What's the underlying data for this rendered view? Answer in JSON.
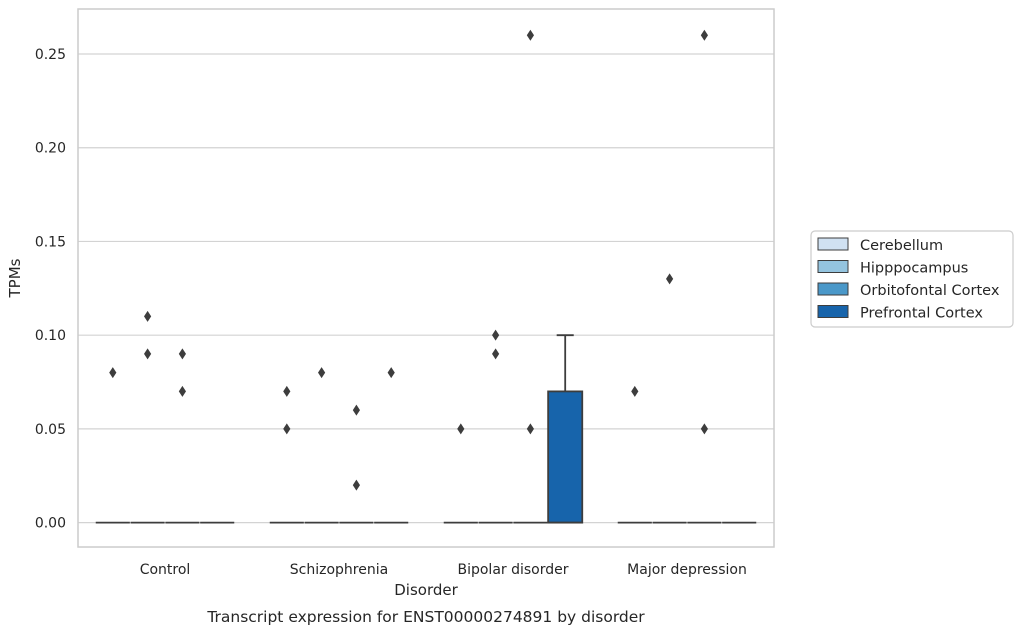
{
  "chart_data": {
    "type": "box",
    "caption": "Transcript expression for ENST00000274891 by disorder",
    "xlabel": "Disorder",
    "ylabel": "TPMs",
    "ylim": [
      -0.013,
      0.274
    ],
    "yticks": [
      0.0,
      0.05,
      0.1,
      0.15,
      0.2,
      0.25
    ],
    "ytick_labels": [
      "0.00",
      "0.05",
      "0.10",
      "0.15",
      "0.20",
      "0.25"
    ],
    "grid": "horizontal",
    "legend_position": "right",
    "categories": [
      "Control",
      "Schizophrenia",
      "Bipolar disorder",
      "Major depression"
    ],
    "series": [
      {
        "name": "Cerebellum",
        "color": "#d0e1f2",
        "boxes": [
          {
            "min": 0,
            "q1": 0,
            "median": 0,
            "q3": 0,
            "max": 0,
            "outliers": [
              0.08
            ]
          },
          {
            "min": 0,
            "q1": 0,
            "median": 0,
            "q3": 0,
            "max": 0,
            "outliers": [
              0.07,
              0.05
            ]
          },
          {
            "min": 0,
            "q1": 0,
            "median": 0,
            "q3": 0,
            "max": 0,
            "outliers": [
              0.05
            ]
          },
          {
            "min": 0,
            "q1": 0,
            "median": 0,
            "q3": 0,
            "max": 0,
            "outliers": [
              0.07
            ]
          }
        ]
      },
      {
        "name": "Hipppocampus",
        "color": "#94c4df",
        "boxes": [
          {
            "min": 0,
            "q1": 0,
            "median": 0,
            "q3": 0,
            "max": 0,
            "outliers": [
              0.11,
              0.09
            ]
          },
          {
            "min": 0,
            "q1": 0,
            "median": 0,
            "q3": 0,
            "max": 0,
            "outliers": [
              0.08
            ]
          },
          {
            "min": 0,
            "q1": 0,
            "median": 0,
            "q3": 0,
            "max": 0,
            "outliers": [
              0.1,
              0.09
            ]
          },
          {
            "min": 0,
            "q1": 0,
            "median": 0,
            "q3": 0,
            "max": 0,
            "outliers": [
              0.13
            ]
          }
        ]
      },
      {
        "name": "Orbitofontal Cortex",
        "color": "#4a98c9",
        "boxes": [
          {
            "min": 0,
            "q1": 0,
            "median": 0,
            "q3": 0,
            "max": 0,
            "outliers": [
              0.09,
              0.07
            ]
          },
          {
            "min": 0,
            "q1": 0,
            "median": 0,
            "q3": 0,
            "max": 0,
            "outliers": [
              0.06,
              0.02
            ]
          },
          {
            "min": 0,
            "q1": 0,
            "median": 0,
            "q3": 0,
            "max": 0,
            "outliers": [
              0.26,
              0.05
            ]
          },
          {
            "min": 0,
            "q1": 0,
            "median": 0,
            "q3": 0,
            "max": 0,
            "outliers": [
              0.26,
              0.05
            ]
          }
        ]
      },
      {
        "name": "Prefrontal Cortex",
        "color": "#1764ab",
        "boxes": [
          {
            "min": 0,
            "q1": 0,
            "median": 0,
            "q3": 0,
            "max": 0,
            "outliers": []
          },
          {
            "min": 0,
            "q1": 0,
            "median": 0,
            "q3": 0,
            "max": 0,
            "outliers": [
              0.08
            ]
          },
          {
            "min": 0,
            "q1": 0,
            "median": 0,
            "q3": 0.07,
            "max": 0.1,
            "outliers": []
          },
          {
            "min": 0,
            "q1": 0,
            "median": 0,
            "q3": 0,
            "max": 0,
            "outliers": []
          }
        ]
      }
    ]
  },
  "colors": {
    "grid": "#d3d3d3",
    "spine": "#cccccc",
    "line": "#3d3d3d",
    "outlier": "#3d3d3d"
  }
}
